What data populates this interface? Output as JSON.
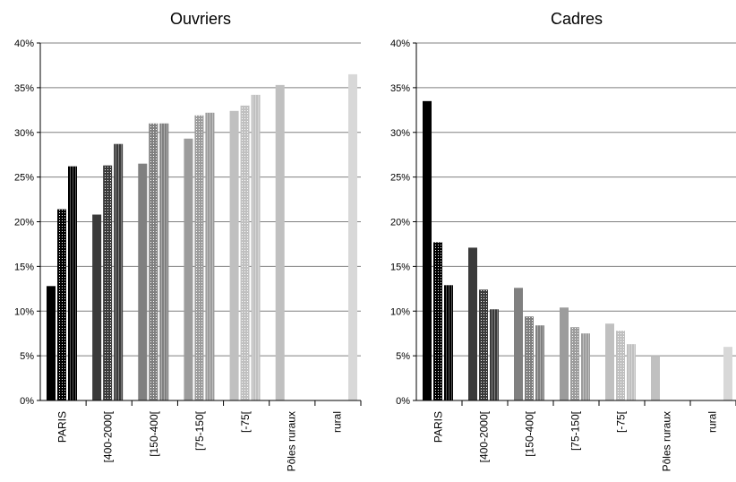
{
  "chart_data": [
    {
      "type": "bar",
      "title": "Ouvriers",
      "categories": [
        "PARIS",
        "[400-2000[",
        "[150-400[",
        "[75-150[",
        "[-75[",
        "Pôles ruraux",
        "rural"
      ],
      "ylim": [
        0,
        40
      ],
      "yticks": [
        "0%",
        "5%",
        "10%",
        "15%",
        "20%",
        "25%",
        "30%",
        "35%",
        "40%"
      ],
      "grid": true,
      "bars": [
        [
          12.8,
          21.4,
          26.2
        ],
        [
          20.8,
          26.3,
          28.7
        ],
        [
          26.5,
          31.0,
          31.0
        ],
        [
          29.3,
          31.9,
          32.2
        ],
        [
          32.4,
          33.0,
          34.2
        ],
        [
          35.3
        ],
        [
          36.5
        ]
      ]
    },
    {
      "type": "bar",
      "title": "Cadres",
      "categories": [
        "PARIS",
        "[400-2000[",
        "[150-400[",
        "[75-150[",
        "[-75[",
        "Pôles ruraux",
        "rural"
      ],
      "ylim": [
        0,
        40
      ],
      "yticks": [
        "0%",
        "5%",
        "10%",
        "15%",
        "20%",
        "25%",
        "30%",
        "35%",
        "40%"
      ],
      "grid": true,
      "bars": [
        [
          33.5,
          17.7,
          12.9
        ],
        [
          17.1,
          12.4,
          10.2
        ],
        [
          12.6,
          9.4,
          8.4
        ],
        [
          10.4,
          8.2,
          7.5
        ],
        [
          8.6,
          7.8,
          6.3
        ],
        [
          5.0
        ],
        [
          6.0
        ]
      ]
    }
  ],
  "colors": {
    "group": [
      "#000000",
      "#3a3a3a",
      "#808080",
      "#9c9c9c",
      "#c0c0c0",
      "#c0c0c0",
      "#d8d8d8"
    ],
    "grid": "#808080"
  }
}
